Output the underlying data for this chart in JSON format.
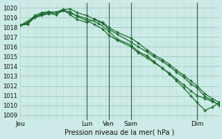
{
  "title": "Pression niveau de la mer( hPa )",
  "bg_color": "#cceae7",
  "grid_color_major": "#99ccbb",
  "grid_color_minor": "#bbddcc",
  "line_color": "#1a6b2a",
  "ylim": [
    1008.5,
    1020.5
  ],
  "yticks": [
    1009,
    1010,
    1011,
    1012,
    1013,
    1014,
    1015,
    1016,
    1017,
    1018,
    1019,
    1020
  ],
  "day_positions": [
    0,
    4.67,
    6.22,
    7.78,
    12.44
  ],
  "day_labels": [
    "Jeu",
    "Lun",
    "Ven",
    "Sam",
    "Dim"
  ],
  "xmax": 14,
  "series": [
    {
      "x": [
        0,
        0.5,
        1.0,
        1.5,
        2.0,
        2.5,
        3.0,
        3.5,
        4.0,
        4.67,
        5.2,
        5.8,
        6.22,
        6.8,
        7.78,
        8.3,
        8.9,
        9.4,
        10.0,
        10.5,
        11.0,
        11.5,
        12.0,
        12.44,
        13.0,
        13.5,
        14.0
      ],
      "y": [
        1018.2,
        1018.4,
        1019.2,
        1019.5,
        1019.6,
        1019.3,
        1019.8,
        1019.9,
        1019.5,
        1019.2,
        1018.85,
        1018.5,
        1018.0,
        1017.5,
        1016.9,
        1016.4,
        1015.7,
        1015.2,
        1014.7,
        1014.2,
        1013.6,
        1013.1,
        1012.5,
        1012.0,
        1011.2,
        1010.7,
        1010.3
      ]
    },
    {
      "x": [
        0,
        0.5,
        1.0,
        1.5,
        2.0,
        2.5,
        3.0,
        3.5,
        4.0,
        4.67,
        5.2,
        5.8,
        6.22,
        6.8,
        7.78,
        8.3,
        8.9,
        9.4,
        10.0,
        10.5,
        11.0,
        11.5,
        12.0,
        12.44,
        13.0,
        13.5,
        14.0
      ],
      "y": [
        1018.2,
        1018.5,
        1019.0,
        1019.4,
        1019.6,
        1019.5,
        1019.85,
        1019.3,
        1018.8,
        1018.5,
        1018.8,
        1018.4,
        1017.8,
        1017.3,
        1016.5,
        1016.0,
        1015.5,
        1015.0,
        1014.5,
        1014.0,
        1013.4,
        1012.9,
        1012.2,
        1011.8,
        1010.9,
        1010.5,
        1010.0
      ]
    },
    {
      "x": [
        0,
        1.0,
        2.0,
        3.0,
        4.0,
        4.67,
        5.5,
        6.22,
        6.8,
        7.78,
        8.3,
        8.9,
        9.4,
        10.0,
        10.5,
        11.0,
        11.5,
        12.0,
        12.44,
        13.0,
        13.5,
        14.0
      ],
      "y": [
        1018.2,
        1019.1,
        1019.5,
        1019.7,
        1019.2,
        1018.9,
        1018.4,
        1017.6,
        1016.8,
        1016.2,
        1015.5,
        1015.1,
        1014.5,
        1013.8,
        1013.2,
        1012.5,
        1011.8,
        1011.0,
        1010.3,
        1009.5,
        1009.8,
        1010.3
      ]
    },
    {
      "x": [
        0,
        0.5,
        1.0,
        1.5,
        2.0,
        2.5,
        3.0,
        3.5,
        4.0,
        4.67,
        5.2,
        5.8,
        6.22,
        6.8,
        7.78,
        8.3,
        8.9,
        9.4,
        10.0,
        10.5,
        11.0,
        11.5,
        12.0,
        12.44,
        13.0,
        13.5,
        14.0
      ],
      "y": [
        1018.2,
        1018.3,
        1019.0,
        1019.2,
        1019.4,
        1019.3,
        1019.7,
        1019.6,
        1019.1,
        1018.7,
        1018.3,
        1017.8,
        1017.2,
        1016.7,
        1016.0,
        1015.4,
        1014.9,
        1014.4,
        1013.8,
        1013.3,
        1012.7,
        1012.1,
        1011.5,
        1011.0,
        1010.7,
        1010.4,
        1010.1
      ]
    }
  ]
}
